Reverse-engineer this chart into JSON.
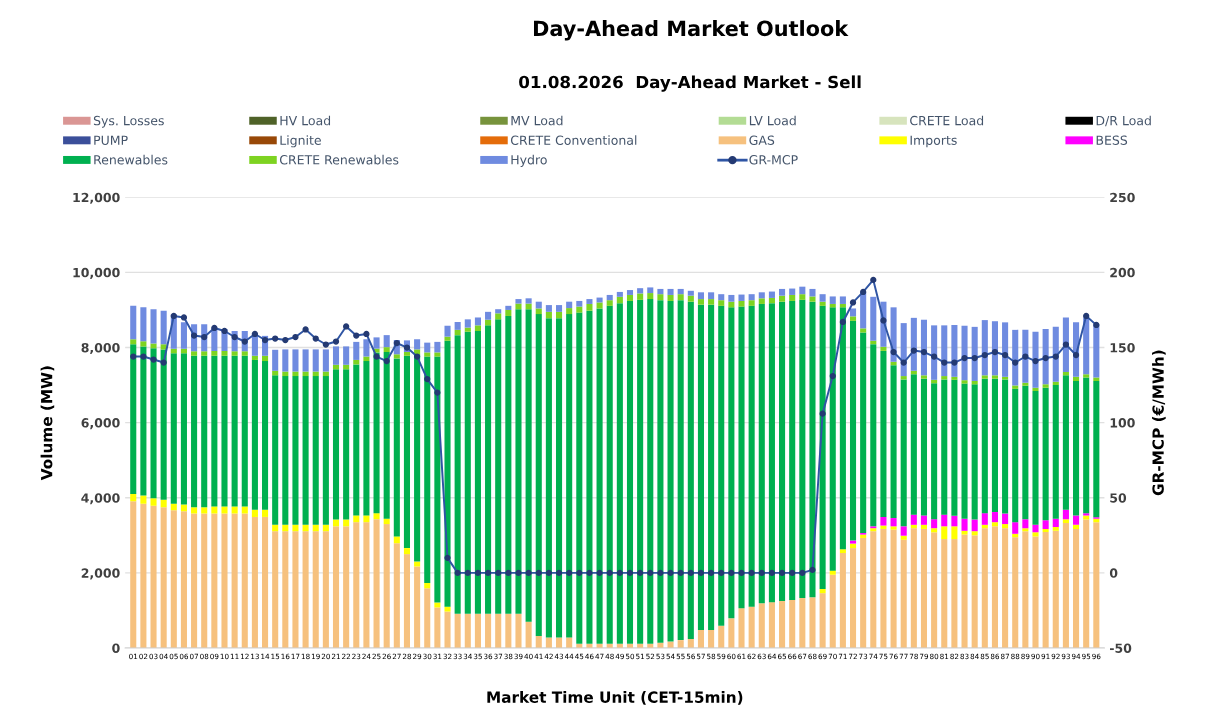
{
  "chart_data": {
    "type": "bar",
    "stacked": true,
    "title": "Day-Ahead Market Outlook",
    "subtitle": "01.08.2026  Day-Ahead Market - Sell",
    "xlabel": "Market Time Unit (CET-15min)",
    "ylabel": "Volume (MW)",
    "y2label": "GR-MCP (€/MWh)",
    "categories": [
      "01",
      "02",
      "03",
      "04",
      "05",
      "06",
      "07",
      "08",
      "09",
      "10",
      "11",
      "12",
      "13",
      "14",
      "15",
      "16",
      "17",
      "18",
      "19",
      "20",
      "21",
      "22",
      "23",
      "24",
      "25",
      "26",
      "27",
      "28",
      "29",
      "30",
      "31",
      "32",
      "33",
      "34",
      "35",
      "36",
      "37",
      "38",
      "39",
      "40",
      "41",
      "42",
      "43",
      "44",
      "45",
      "46",
      "47",
      "48",
      "49",
      "50",
      "51",
      "52",
      "53",
      "54",
      "55",
      "56",
      "57",
      "58",
      "59",
      "60",
      "61",
      "62",
      "63",
      "64",
      "65",
      "66",
      "67",
      "68",
      "69",
      "70",
      "71",
      "72",
      "73",
      "74",
      "75",
      "76",
      "77",
      "78",
      "79",
      "80",
      "81",
      "82",
      "83",
      "84",
      "85",
      "86",
      "87",
      "88",
      "89",
      "90",
      "91",
      "92",
      "93",
      "94",
      "95",
      "96"
    ],
    "ylim": [
      0,
      12000
    ],
    "yticks": [
      0,
      {
        "value": 2000,
        "label": "2,000"
      },
      {
        "value": 4000,
        "label": "4,000"
      },
      {
        "value": 6000,
        "label": "6,000"
      },
      {
        "value": 8000,
        "label": "8,000"
      },
      {
        "value": 10000,
        "label": "10,000"
      },
      {
        "value": 12000,
        "label": "12,000"
      }
    ],
    "y2lim": [
      -50,
      250
    ],
    "y2ticks": [
      -50,
      0,
      50,
      100,
      150,
      200,
      250
    ],
    "grid": "y",
    "legend": "top",
    "series": [
      {
        "name": "Sys. Losses",
        "color": "#da9694",
        "values": [
          null,
          null,
          null,
          null,
          null,
          null,
          null,
          null,
          null,
          null,
          null,
          null,
          null,
          null,
          null,
          null,
          null,
          null,
          null,
          null,
          null,
          null,
          null,
          null,
          null,
          null,
          null,
          null,
          null,
          null,
          null,
          null,
          null,
          null,
          null,
          null,
          null,
          null,
          null,
          null,
          null,
          null,
          null,
          null,
          null,
          null,
          null,
          null,
          null,
          null,
          null,
          null,
          null,
          null,
          null,
          null,
          null,
          null,
          null,
          null,
          null,
          null,
          null,
          null,
          null,
          null,
          null,
          null,
          null,
          null,
          null,
          null,
          null,
          null,
          null,
          null,
          null,
          null,
          null,
          null,
          null,
          null,
          null,
          null,
          null,
          null,
          null,
          null,
          null,
          null,
          null,
          null,
          null,
          null,
          null,
          null
        ]
      },
      {
        "name": "HV Load",
        "color": "#4f6228",
        "values": [
          null,
          null,
          null,
          null,
          null,
          null,
          null,
          null,
          null,
          null,
          null,
          null,
          null,
          null,
          null,
          null,
          null,
          null,
          null,
          null,
          null,
          null,
          null,
          null,
          null,
          null,
          null,
          null,
          null,
          null,
          null,
          null,
          null,
          null,
          null,
          null,
          null,
          null,
          null,
          null,
          null,
          null,
          null,
          null,
          null,
          null,
          null,
          null,
          null,
          null,
          null,
          null,
          null,
          null,
          null,
          null,
          null,
          null,
          null,
          null,
          null,
          null,
          null,
          null,
          null,
          null,
          null,
          null,
          null,
          null,
          null,
          null,
          null,
          null,
          null,
          null,
          null,
          null,
          null,
          null,
          null,
          null,
          null,
          null,
          null,
          null,
          null,
          null,
          null,
          null,
          null,
          null,
          null,
          null,
          null,
          null
        ]
      },
      {
        "name": "MV Load",
        "color": "#77933c",
        "values": [
          null,
          null,
          null,
          null,
          null,
          null,
          null,
          null,
          null,
          null,
          null,
          null,
          null,
          null,
          null,
          null,
          null,
          null,
          null,
          null,
          null,
          null,
          null,
          null,
          null,
          null,
          null,
          null,
          null,
          null,
          null,
          null,
          null,
          null,
          null,
          null,
          null,
          null,
          null,
          null,
          null,
          null,
          null,
          null,
          null,
          null,
          null,
          null,
          null,
          null,
          null,
          null,
          null,
          null,
          null,
          null,
          null,
          null,
          null,
          null,
          null,
          null,
          null,
          null,
          null,
          null,
          null,
          null,
          null,
          null,
          null,
          null,
          null,
          null,
          null,
          null,
          null,
          null,
          null,
          null,
          null,
          null,
          null,
          null,
          null,
          null,
          null,
          null,
          null,
          null,
          null,
          null,
          null,
          null,
          null,
          null
        ]
      },
      {
        "name": "LV Load",
        "color": "#b3dc94",
        "values": [
          null,
          null,
          null,
          null,
          null,
          null,
          null,
          null,
          null,
          null,
          null,
          null,
          null,
          null,
          null,
          null,
          null,
          null,
          null,
          null,
          null,
          null,
          null,
          null,
          null,
          null,
          null,
          null,
          null,
          null,
          null,
          null,
          null,
          null,
          null,
          null,
          null,
          null,
          null,
          null,
          null,
          null,
          null,
          null,
          null,
          null,
          null,
          null,
          null,
          null,
          null,
          null,
          null,
          null,
          null,
          null,
          null,
          null,
          null,
          null,
          null,
          null,
          null,
          null,
          null,
          null,
          null,
          null,
          null,
          null,
          null,
          null,
          null,
          null,
          null,
          null,
          null,
          null,
          null,
          null,
          null,
          null,
          null,
          null,
          null,
          null,
          null,
          null,
          null,
          null,
          null,
          null,
          null,
          null,
          null,
          null
        ]
      },
      {
        "name": "CRETE Load",
        "color": "#d7e4bd",
        "values": [
          null,
          null,
          null,
          null,
          null,
          null,
          null,
          null,
          null,
          null,
          null,
          null,
          null,
          null,
          null,
          null,
          null,
          null,
          null,
          null,
          null,
          null,
          null,
          null,
          null,
          null,
          null,
          null,
          null,
          null,
          null,
          null,
          null,
          null,
          null,
          null,
          null,
          null,
          null,
          null,
          null,
          null,
          null,
          null,
          null,
          null,
          null,
          null,
          null,
          null,
          null,
          null,
          null,
          null,
          null,
          null,
          null,
          null,
          null,
          null,
          null,
          null,
          null,
          null,
          null,
          null,
          null,
          null,
          null,
          null,
          null,
          null,
          null,
          null,
          null,
          null,
          null,
          null,
          null,
          null,
          null,
          null,
          null,
          null,
          null,
          null,
          null,
          null,
          null,
          null,
          null,
          null,
          null,
          null,
          null,
          null
        ]
      },
      {
        "name": "D/R Load",
        "color": "#000000",
        "values": [
          null,
          null,
          null,
          null,
          null,
          null,
          null,
          null,
          null,
          null,
          null,
          null,
          null,
          null,
          null,
          null,
          null,
          null,
          null,
          null,
          null,
          null,
          null,
          null,
          null,
          null,
          null,
          null,
          null,
          null,
          null,
          null,
          null,
          null,
          null,
          null,
          null,
          null,
          null,
          null,
          null,
          null,
          null,
          null,
          null,
          null,
          null,
          null,
          null,
          null,
          null,
          null,
          null,
          null,
          null,
          null,
          null,
          null,
          null,
          null,
          null,
          null,
          null,
          null,
          null,
          null,
          null,
          null,
          null,
          null,
          null,
          null,
          null,
          null,
          null,
          null,
          null,
          null,
          null,
          null,
          null,
          null,
          null,
          null,
          null,
          null,
          null,
          null,
          null,
          null,
          null,
          null,
          null,
          null,
          null,
          null
        ]
      },
      {
        "name": "PUMP",
        "color": "#3b4f9a",
        "values": [
          null,
          null,
          null,
          null,
          null,
          null,
          null,
          null,
          null,
          null,
          null,
          null,
          null,
          null,
          null,
          null,
          null,
          null,
          null,
          null,
          null,
          null,
          null,
          null,
          null,
          null,
          null,
          null,
          null,
          null,
          null,
          null,
          null,
          null,
          null,
          null,
          null,
          null,
          null,
          null,
          null,
          null,
          null,
          null,
          null,
          null,
          null,
          null,
          null,
          null,
          null,
          null,
          null,
          null,
          null,
          null,
          null,
          null,
          null,
          null,
          null,
          null,
          null,
          null,
          null,
          null,
          null,
          null,
          null,
          null,
          null,
          null,
          null,
          null,
          null,
          null,
          null,
          null,
          null,
          null,
          null,
          null,
          null,
          null,
          null,
          null,
          null,
          null,
          null,
          null,
          null,
          null,
          null,
          null,
          null,
          null
        ]
      },
      {
        "name": "Lignite",
        "color": "#984807",
        "values": [
          null,
          null,
          null,
          null,
          null,
          null,
          null,
          null,
          null,
          null,
          null,
          null,
          null,
          null,
          null,
          null,
          null,
          null,
          null,
          null,
          null,
          null,
          null,
          null,
          null,
          null,
          null,
          null,
          null,
          null,
          null,
          null,
          null,
          null,
          null,
          null,
          null,
          null,
          null,
          null,
          null,
          null,
          null,
          null,
          null,
          null,
          null,
          null,
          null,
          null,
          null,
          null,
          null,
          null,
          null,
          null,
          null,
          null,
          null,
          null,
          null,
          null,
          null,
          null,
          null,
          null,
          null,
          null,
          null,
          null,
          null,
          null,
          null,
          null,
          null,
          null,
          null,
          null,
          null,
          null,
          null,
          null,
          null,
          null,
          null,
          null,
          null,
          null,
          null,
          null,
          null,
          null,
          null,
          null,
          null,
          null
        ]
      },
      {
        "name": "CRETE Conventional",
        "color": "#e46c0a",
        "values": [
          null,
          null,
          null,
          null,
          null,
          null,
          null,
          null,
          null,
          null,
          null,
          null,
          null,
          null,
          null,
          null,
          null,
          null,
          null,
          null,
          null,
          null,
          null,
          null,
          null,
          null,
          null,
          null,
          null,
          null,
          null,
          null,
          null,
          null,
          null,
          null,
          null,
          null,
          null,
          null,
          null,
          null,
          null,
          null,
          null,
          null,
          null,
          null,
          null,
          null,
          null,
          null,
          null,
          null,
          null,
          null,
          null,
          null,
          null,
          null,
          null,
          null,
          null,
          null,
          null,
          null,
          null,
          null,
          null,
          null,
          null,
          null,
          null,
          null,
          null,
          null,
          null,
          null,
          null,
          null,
          null,
          null,
          null,
          null,
          null,
          null,
          null,
          null,
          null,
          null,
          null,
          null,
          null,
          null,
          null,
          null
        ]
      },
      {
        "name": "GAS",
        "color": "#f6c17e",
        "values": [
          3910,
          3840,
          3790,
          3750,
          3670,
          3640,
          3580,
          3580,
          3580,
          3580,
          3580,
          3580,
          3490,
          3490,
          3110,
          3110,
          3110,
          3110,
          3110,
          3110,
          3240,
          3240,
          3350,
          3350,
          3430,
          3300,
          2790,
          2500,
          2170,
          1590,
          1080,
          970,
          910,
          910,
          910,
          910,
          910,
          910,
          910,
          700,
          320,
          280,
          280,
          280,
          110,
          110,
          110,
          110,
          110,
          110,
          110,
          110,
          140,
          170,
          210,
          240,
          480,
          480,
          590,
          790,
          1060,
          1100,
          1190,
          1220,
          1250,
          1280,
          1330,
          1350,
          1460,
          1950,
          2530,
          2660,
          2930,
          3110,
          3170,
          3150,
          2880,
          3190,
          3170,
          3080,
          2900,
          2900,
          3020,
          3000,
          3190,
          3240,
          3190,
          2950,
          3110,
          2970,
          3090,
          3120,
          3330,
          3170,
          3420,
          3350
        ]
      },
      {
        "name": "Imports",
        "color": "#ffff00",
        "values": [
          190,
          220,
          200,
          200,
          170,
          180,
          170,
          170,
          190,
          190,
          190,
          190,
          190,
          190,
          170,
          170,
          170,
          170,
          170,
          170,
          180,
          180,
          180,
          180,
          160,
          140,
          180,
          160,
          130,
          140,
          130,
          130,
          null,
          null,
          null,
          null,
          null,
          null,
          null,
          null,
          null,
          null,
          null,
          null,
          null,
          null,
          null,
          null,
          null,
          null,
          null,
          null,
          null,
          null,
          null,
          null,
          null,
          null,
          null,
          null,
          null,
          null,
          null,
          null,
          null,
          null,
          null,
          null,
          110,
          110,
          100,
          120,
          90,
          80,
          90,
          90,
          110,
          90,
          110,
          110,
          340,
          340,
          100,
          110,
          90,
          110,
          110,
          90,
          80,
          110,
          80,
          100,
          100,
          110,
          110,
          90
        ]
      },
      {
        "name": "BESS",
        "color": "#ff00ff",
        "values": [
          null,
          null,
          null,
          null,
          null,
          null,
          null,
          null,
          null,
          null,
          null,
          null,
          null,
          null,
          null,
          null,
          null,
          null,
          null,
          null,
          null,
          null,
          null,
          null,
          null,
          null,
          null,
          null,
          null,
          null,
          null,
          null,
          null,
          null,
          null,
          null,
          null,
          null,
          null,
          null,
          null,
          null,
          null,
          null,
          null,
          null,
          null,
          null,
          null,
          null,
          null,
          null,
          null,
          null,
          null,
          null,
          null,
          null,
          null,
          null,
          null,
          null,
          null,
          null,
          null,
          null,
          null,
          null,
          null,
          null,
          null,
          80,
          40,
          50,
          230,
          220,
          250,
          270,
          250,
          240,
          310,
          280,
          320,
          310,
          310,
          270,
          280,
          310,
          240,
          200,
          230,
          220,
          250,
          250,
          60,
          40
        ]
      },
      {
        "name": "Renewables",
        "color": "#00b050",
        "values": [
          3990,
          3970,
          3990,
          4000,
          4010,
          4030,
          4030,
          4030,
          4010,
          4010,
          4010,
          4010,
          3990,
          3960,
          3980,
          3960,
          3960,
          3960,
          3960,
          3960,
          4000,
          4000,
          4020,
          4110,
          4280,
          4440,
          4740,
          5120,
          5520,
          6030,
          6550,
          7080,
          7420,
          7510,
          7530,
          7680,
          7840,
          7930,
          8110,
          8320,
          8570,
          8500,
          8500,
          8610,
          8820,
          8870,
          8930,
          9000,
          9070,
          9130,
          9160,
          9180,
          9120,
          9070,
          9050,
          8980,
          8660,
          8660,
          8520,
          8280,
          8030,
          8010,
          7970,
          7960,
          7970,
          7960,
          7940,
          7870,
          7540,
          7010,
          6440,
          5850,
          5340,
          4850,
          4420,
          4070,
          3910,
          3740,
          3640,
          3620,
          3600,
          3620,
          3600,
          3600,
          3580,
          3550,
          3570,
          3550,
          3550,
          3560,
          3530,
          3560,
          3580,
          3580,
          3610,
          3630
        ]
      },
      {
        "name": "CRETE Renewables",
        "color": "#7ed321",
        "values": [
          130,
          140,
          130,
          140,
          120,
          120,
          120,
          120,
          130,
          130,
          120,
          120,
          110,
          140,
          120,
          120,
          120,
          120,
          120,
          120,
          120,
          120,
          120,
          120,
          100,
          130,
          110,
          100,
          130,
          110,
          110,
          110,
          140,
          110,
          150,
          150,
          160,
          160,
          150,
          150,
          150,
          170,
          170,
          160,
          160,
          180,
          160,
          150,
          170,
          160,
          170,
          160,
          160,
          160,
          160,
          160,
          150,
          150,
          150,
          150,
          150,
          150,
          150,
          140,
          160,
          160,
          150,
          140,
          110,
          90,
          90,
          120,
          110,
          90,
          110,
          90,
          90,
          90,
          90,
          90,
          90,
          80,
          90,
          90,
          90,
          90,
          70,
          90,
          80,
          90,
          90,
          90,
          90,
          110,
          90,
          90
        ]
      },
      {
        "name": "Hydro",
        "color": "#6f8be0",
        "values": [
          890,
          900,
          910,
          890,
          910,
          700,
          720,
          720,
          620,
          580,
          540,
          540,
          600,
          530,
          560,
          590,
          590,
          590,
          590,
          590,
          490,
          490,
          480,
          460,
          300,
          320,
          380,
          310,
          270,
          260,
          280,
          290,
          210,
          220,
          210,
          210,
          110,
          110,
          120,
          140,
          180,
          180,
          180,
          170,
          150,
          130,
          130,
          140,
          130,
          130,
          140,
          150,
          140,
          160,
          140,
          130,
          180,
          180,
          160,
          180,
          170,
          160,
          160,
          170,
          180,
          170,
          200,
          200,
          200,
          200,
          200,
          210,
          960,
          1170,
          1200,
          1450,
          1410,
          1410,
          1480,
          1450,
          1350,
          1380,
          1450,
          1440,
          1470,
          1440,
          1450,
          1480,
          1410,
          1490,
          1470,
          1460,
          1450,
          1450,
          1510,
          1420
        ]
      },
      {
        "name": "GR-MCP",
        "type": "line",
        "axis": "y2",
        "color": "#2f55a4",
        "marker": "circle",
        "line_style": "solid",
        "values": [
          144,
          144,
          142,
          140,
          171,
          170,
          158,
          157,
          163,
          161,
          157,
          154,
          159,
          155,
          156,
          155,
          157,
          162,
          156,
          152,
          154,
          164,
          158,
          159,
          144,
          141,
          153,
          150,
          144,
          129,
          120,
          10,
          0,
          0,
          0,
          0,
          0,
          0,
          0,
          0,
          0,
          0,
          0,
          0,
          0,
          0,
          0,
          0,
          0,
          0,
          0,
          0,
          0,
          0,
          0,
          0,
          0,
          0,
          0,
          0,
          0,
          0,
          0,
          0,
          0,
          0,
          0,
          2,
          106,
          131,
          167,
          180,
          187,
          195,
          168,
          147,
          140,
          148,
          147,
          144,
          140,
          140,
          143,
          143,
          145,
          147,
          145,
          140,
          144,
          141,
          143,
          144,
          152,
          145,
          171,
          165
        ]
      }
    ]
  }
}
